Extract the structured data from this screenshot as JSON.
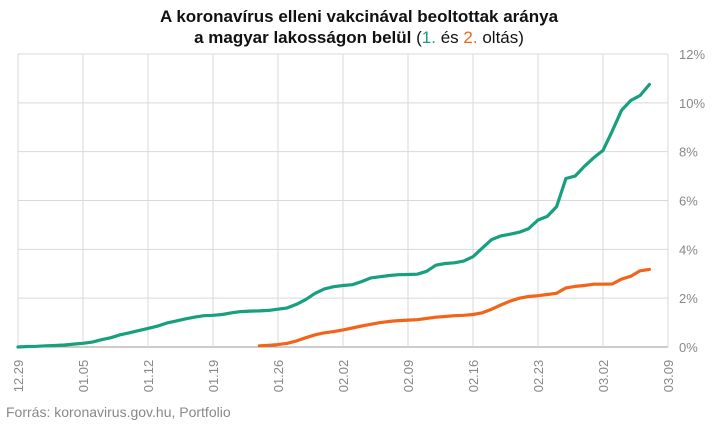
{
  "title": {
    "line1": "A koronavírus elleni vakcinával beoltottak aránya",
    "line2_main": "a magyar lakosságon belül",
    "paren_open": "(",
    "first_label": "1.",
    "and_word": "és",
    "second_label": "2.",
    "dose_word": "oltás)"
  },
  "source": "Forrás: koronavirus.gov.hu, Portfolio",
  "colors": {
    "first_dose": "#16a07e",
    "second_dose": "#f26419",
    "grid": "#d9d9d9",
    "text": "#888888"
  },
  "chart_data": {
    "type": "line",
    "xlabel": "",
    "ylabel": "",
    "ylim": [
      0,
      12
    ],
    "yticks": [
      "0%",
      "2%",
      "4%",
      "6%",
      "8%",
      "10%",
      "12%"
    ],
    "x_ticks": [
      "12.29",
      "01.05",
      "01.12",
      "01.19",
      "01.26",
      "02.02",
      "02.09",
      "02.16",
      "02.23",
      "03.02",
      "03.09"
    ],
    "x_range_days": [
      0,
      70
    ],
    "grid": true,
    "series": [
      {
        "key": "first",
        "points": [
          [
            0,
            0.0
          ],
          [
            1,
            0.02
          ],
          [
            2,
            0.03
          ],
          [
            3,
            0.05
          ],
          [
            4,
            0.06
          ],
          [
            5,
            0.08
          ],
          [
            6,
            0.12
          ],
          [
            7,
            0.15
          ],
          [
            8,
            0.2
          ],
          [
            9,
            0.3
          ],
          [
            10,
            0.38
          ],
          [
            11,
            0.5
          ],
          [
            12,
            0.58
          ],
          [
            13,
            0.67
          ],
          [
            14,
            0.76
          ],
          [
            15,
            0.85
          ],
          [
            16,
            0.98
          ],
          [
            17,
            1.06
          ],
          [
            18,
            1.15
          ],
          [
            19,
            1.22
          ],
          [
            20,
            1.28
          ],
          [
            21,
            1.3
          ],
          [
            22,
            1.33
          ],
          [
            23,
            1.4
          ],
          [
            24,
            1.45
          ],
          [
            25,
            1.47
          ],
          [
            26,
            1.48
          ],
          [
            27,
            1.5
          ],
          [
            28,
            1.55
          ],
          [
            29,
            1.6
          ],
          [
            30,
            1.75
          ],
          [
            31,
            1.95
          ],
          [
            32,
            2.2
          ],
          [
            33,
            2.38
          ],
          [
            34,
            2.47
          ],
          [
            35,
            2.52
          ],
          [
            36,
            2.55
          ],
          [
            37,
            2.68
          ],
          [
            38,
            2.83
          ],
          [
            39,
            2.88
          ],
          [
            40,
            2.93
          ],
          [
            41,
            2.96
          ],
          [
            42,
            2.97
          ],
          [
            43,
            2.98
          ],
          [
            44,
            3.1
          ],
          [
            45,
            3.35
          ],
          [
            46,
            3.42
          ],
          [
            47,
            3.45
          ],
          [
            48,
            3.52
          ],
          [
            49,
            3.7
          ],
          [
            50,
            4.05
          ],
          [
            51,
            4.4
          ],
          [
            52,
            4.55
          ],
          [
            53,
            4.62
          ],
          [
            54,
            4.7
          ],
          [
            55,
            4.85
          ],
          [
            56,
            5.2
          ],
          [
            57,
            5.35
          ],
          [
            58,
            5.75
          ],
          [
            59,
            6.9
          ],
          [
            60,
            7.0
          ],
          [
            61,
            7.4
          ],
          [
            62,
            7.75
          ],
          [
            63,
            8.05
          ],
          [
            64,
            8.85
          ],
          [
            65,
            9.7
          ],
          [
            66,
            10.1
          ],
          [
            67,
            10.3
          ],
          [
            68,
            10.75
          ]
        ]
      },
      {
        "key": "second",
        "points": [
          [
            26,
            0.05
          ],
          [
            27,
            0.07
          ],
          [
            28,
            0.1
          ],
          [
            29,
            0.15
          ],
          [
            30,
            0.25
          ],
          [
            31,
            0.38
          ],
          [
            32,
            0.5
          ],
          [
            33,
            0.58
          ],
          [
            34,
            0.63
          ],
          [
            35,
            0.7
          ],
          [
            36,
            0.78
          ],
          [
            37,
            0.86
          ],
          [
            38,
            0.93
          ],
          [
            39,
            1.0
          ],
          [
            40,
            1.05
          ],
          [
            41,
            1.08
          ],
          [
            42,
            1.1
          ],
          [
            43,
            1.12
          ],
          [
            44,
            1.17
          ],
          [
            45,
            1.22
          ],
          [
            46,
            1.25
          ],
          [
            47,
            1.28
          ],
          [
            48,
            1.3
          ],
          [
            49,
            1.33
          ],
          [
            50,
            1.4
          ],
          [
            51,
            1.55
          ],
          [
            52,
            1.72
          ],
          [
            53,
            1.88
          ],
          [
            54,
            2.0
          ],
          [
            55,
            2.07
          ],
          [
            56,
            2.1
          ],
          [
            57,
            2.15
          ],
          [
            58,
            2.2
          ],
          [
            59,
            2.42
          ],
          [
            60,
            2.48
          ],
          [
            61,
            2.52
          ],
          [
            62,
            2.57
          ],
          [
            63,
            2.57
          ],
          [
            64,
            2.58
          ],
          [
            65,
            2.78
          ],
          [
            66,
            2.9
          ],
          [
            67,
            3.12
          ],
          [
            68,
            3.18
          ]
        ]
      }
    ]
  }
}
